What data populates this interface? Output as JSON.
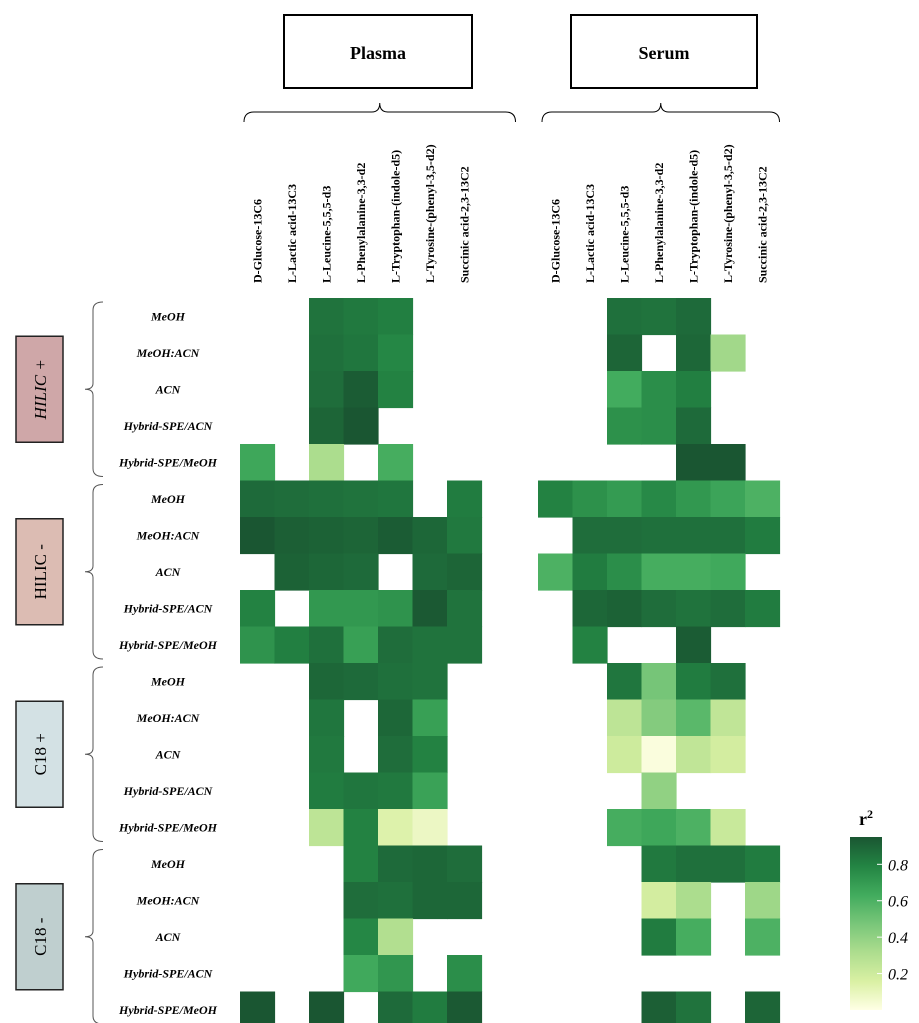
{
  "chart_data": {
    "type": "heatmap",
    "panels": [
      "Plasma",
      "Serum"
    ],
    "columns": [
      "D-Glucose-13C6",
      "L-Lactic acid-13C3",
      "L-Leucine-5,5,5-d3",
      "L-Phenylalanine-3,3-d2",
      "L-Tryptophan-(indole-d5)",
      "L-Tyrosine-(phenyl-3,5-d2)",
      "Succinic acid-2,3-13C2"
    ],
    "groups": [
      {
        "label": "HILIC +",
        "color": "#cfa7a8"
      },
      {
        "label": "HILIC -",
        "color": "#dcbcb3"
      },
      {
        "label": "C18 +",
        "color": "#d3e1e4"
      },
      {
        "label": "C18 -",
        "color": "#bfcfcf"
      }
    ],
    "rows": [
      "MeOH",
      "MeOH:ACN",
      "ACN",
      "Hybrid-SPE/ACN",
      "Hybrid-SPE/MeOH"
    ],
    "values": {
      "Plasma": [
        [
          null,
          null,
          0.85,
          0.83,
          0.81,
          null,
          null
        ],
        [
          null,
          null,
          0.86,
          0.84,
          0.78,
          null,
          null
        ],
        [
          null,
          null,
          0.87,
          0.93,
          0.8,
          null,
          null
        ],
        [
          null,
          null,
          0.9,
          0.96,
          null,
          null,
          null
        ],
        [
          0.65,
          null,
          0.32,
          null,
          0.62,
          null,
          null
        ],
        [
          0.88,
          0.87,
          0.86,
          0.85,
          0.84,
          null,
          0.82
        ],
        [
          0.95,
          0.92,
          0.91,
          0.9,
          0.93,
          0.89,
          0.83
        ],
        [
          null,
          0.91,
          0.89,
          0.88,
          null,
          0.88,
          0.9
        ],
        [
          0.8,
          null,
          0.71,
          0.71,
          0.73,
          0.94,
          0.85
        ],
        [
          0.73,
          0.81,
          0.86,
          0.68,
          0.87,
          0.85,
          0.85
        ],
        [
          null,
          null,
          0.89,
          0.88,
          0.86,
          0.85,
          null
        ],
        [
          null,
          null,
          0.84,
          null,
          0.89,
          0.68,
          null
        ],
        [
          null,
          null,
          0.83,
          null,
          0.87,
          0.8,
          null
        ],
        [
          null,
          null,
          0.82,
          0.84,
          0.83,
          0.67,
          null
        ],
        [
          null,
          null,
          0.26,
          0.8,
          0.14,
          0.08,
          null
        ],
        [
          null,
          null,
          null,
          0.8,
          0.88,
          0.89,
          0.87
        ],
        [
          null,
          null,
          null,
          0.87,
          0.86,
          0.89,
          0.89
        ],
        [
          null,
          null,
          null,
          0.78,
          0.3,
          null,
          null
        ],
        [
          null,
          null,
          null,
          0.64,
          0.72,
          null,
          0.75
        ],
        [
          0.95,
          null,
          0.96,
          null,
          0.88,
          0.82,
          0.94
        ]
      ],
      "Serum": [
        [
          null,
          null,
          0.86,
          0.85,
          0.88,
          null,
          null
        ],
        [
          null,
          null,
          0.9,
          null,
          0.89,
          0.35,
          null
        ],
        [
          null,
          null,
          0.63,
          0.75,
          0.81,
          null,
          null
        ],
        [
          null,
          null,
          0.74,
          0.75,
          0.88,
          null,
          null
        ],
        [
          null,
          null,
          null,
          null,
          0.95,
          0.96,
          null
        ],
        [
          0.8,
          0.74,
          0.7,
          0.77,
          0.71,
          0.66,
          0.6
        ],
        [
          null,
          0.87,
          0.87,
          0.86,
          0.86,
          0.86,
          0.82
        ],
        [
          0.6,
          0.82,
          0.75,
          0.62,
          0.62,
          0.64,
          null
        ],
        [
          null,
          0.89,
          0.91,
          0.87,
          0.85,
          0.87,
          0.82
        ],
        [
          null,
          0.8,
          null,
          null,
          0.93,
          null,
          null
        ],
        [
          null,
          null,
          0.84,
          0.48,
          0.82,
          0.86,
          null
        ],
        [
          null,
          null,
          0.26,
          0.44,
          0.56,
          0.25,
          null
        ],
        [
          null,
          null,
          0.2,
          0.02,
          0.25,
          0.18,
          null
        ],
        [
          null,
          null,
          null,
          0.4,
          null,
          null,
          null
        ],
        [
          null,
          null,
          0.62,
          0.65,
          0.6,
          0.22,
          null
        ],
        [
          null,
          null,
          null,
          0.83,
          0.86,
          0.86,
          0.82
        ],
        [
          null,
          null,
          null,
          0.18,
          0.32,
          null,
          0.36
        ],
        [
          null,
          null,
          null,
          0.82,
          0.62,
          null,
          0.6
        ],
        [
          null,
          null,
          null,
          null,
          null,
          null,
          null
        ],
        [
          null,
          null,
          null,
          0.92,
          0.85,
          null,
          0.9
        ]
      ]
    },
    "legend": {
      "title": "r",
      "title_superscript": "2",
      "ticks": [
        "0.8",
        "0.6",
        "0.4",
        "0.2"
      ],
      "tick_values": [
        0.8,
        0.6,
        0.4,
        0.2
      ],
      "range": [
        0,
        0.95
      ],
      "placement": "right-bottom"
    },
    "colorscale": [
      "#ffffe5",
      "#d9f0a3",
      "#addd8e",
      "#78c679",
      "#41ab5d",
      "#238443",
      "#1a5632"
    ]
  }
}
